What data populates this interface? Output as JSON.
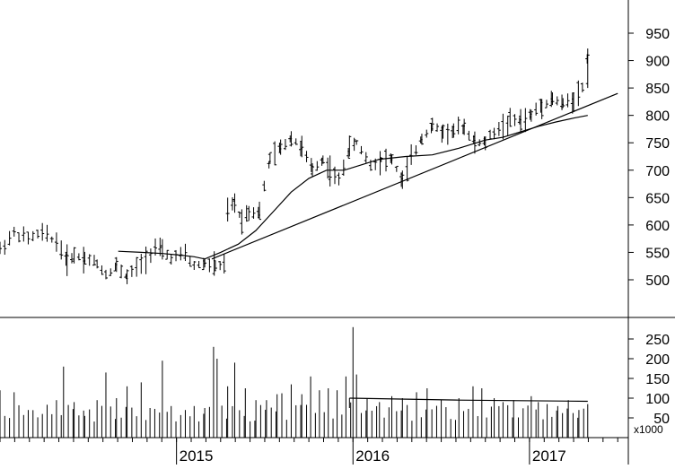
{
  "chart_data": {
    "type": "bar",
    "subtype": "ohlc-weekly-with-volume",
    "background": "#ffffff",
    "line_color": "#000000",
    "grid": false,
    "legend": "none",
    "price_panel": {
      "ylim": [
        450,
        970
      ],
      "yticks": [
        500,
        550,
        600,
        650,
        700,
        750,
        800,
        850,
        900,
        950
      ],
      "ytick_labels": [
        "500",
        "550",
        "600",
        "650",
        "700",
        "750",
        "800",
        "850",
        "900",
        "950"
      ],
      "weekly_close": [
        [
          2014.0,
          555
        ],
        [
          2014.08,
          585
        ],
        [
          2014.16,
          575
        ],
        [
          2014.24,
          585
        ],
        [
          2014.32,
          570
        ],
        [
          2014.38,
          535
        ],
        [
          2014.42,
          545
        ],
        [
          2014.48,
          540
        ],
        [
          2014.55,
          530
        ],
        [
          2014.6,
          510
        ],
        [
          2014.66,
          525
        ],
        [
          2014.72,
          505
        ],
        [
          2014.8,
          530
        ],
        [
          2014.88,
          560
        ],
        [
          2014.92,
          550
        ],
        [
          2014.97,
          540
        ],
        [
          2015.05,
          545
        ],
        [
          2015.1,
          525
        ],
        [
          2015.16,
          530
        ],
        [
          2015.22,
          525
        ],
        [
          2015.27,
          525
        ],
        [
          2015.29,
          625
        ],
        [
          2015.33,
          640
        ],
        [
          2015.37,
          610
        ],
        [
          2015.41,
          625
        ],
        [
          2015.47,
          625
        ],
        [
          2015.53,
          720
        ],
        [
          2015.59,
          740
        ],
        [
          2015.65,
          760
        ],
        [
          2015.71,
          740
        ],
        [
          2015.77,
          700
        ],
        [
          2015.83,
          720
        ],
        [
          2015.87,
          700
        ],
        [
          2015.92,
          680
        ],
        [
          2015.98,
          740
        ],
        [
          2016.02,
          750
        ],
        [
          2016.1,
          710
        ],
        [
          2016.16,
          720
        ],
        [
          2016.22,
          720
        ],
        [
          2016.28,
          680
        ],
        [
          2016.33,
          720
        ],
        [
          2016.39,
          760
        ],
        [
          2016.45,
          780
        ],
        [
          2016.51,
          770
        ],
        [
          2016.57,
          770
        ],
        [
          2016.63,
          780
        ],
        [
          2016.69,
          750
        ],
        [
          2016.75,
          750
        ],
        [
          2016.8,
          770
        ],
        [
          2016.85,
          780
        ],
        [
          2016.89,
          790
        ],
        [
          2016.95,
          790
        ],
        [
          2017.01,
          800
        ],
        [
          2017.07,
          820
        ],
        [
          2017.13,
          830
        ],
        [
          2017.19,
          820
        ],
        [
          2017.25,
          830
        ],
        [
          2017.3,
          850
        ],
        [
          2017.33,
          910
        ]
      ],
      "moving_average": [
        [
          2014.67,
          552
        ],
        [
          2014.8,
          550
        ],
        [
          2014.92,
          548
        ],
        [
          2015.02,
          545
        ],
        [
          2015.1,
          542
        ],
        [
          2015.16,
          538
        ],
        [
          2015.25,
          550
        ],
        [
          2015.35,
          565
        ],
        [
          2015.45,
          590
        ],
        [
          2015.55,
          625
        ],
        [
          2015.65,
          660
        ],
        [
          2015.75,
          685
        ],
        [
          2015.85,
          700
        ],
        [
          2015.95,
          700
        ],
        [
          2016.05,
          710
        ],
        [
          2016.15,
          720
        ],
        [
          2016.3,
          725
        ],
        [
          2016.45,
          728
        ],
        [
          2016.6,
          740
        ],
        [
          2016.75,
          755
        ],
        [
          2016.85,
          760
        ],
        [
          2016.95,
          770
        ],
        [
          2017.05,
          780
        ],
        [
          2017.15,
          788
        ],
        [
          2017.25,
          795
        ],
        [
          2017.33,
          800
        ]
      ],
      "trendline": [
        [
          2015.2,
          538
        ],
        [
          2017.5,
          840
        ]
      ]
    },
    "volume_panel": {
      "unit_label": "x1000",
      "ylim": [
        0,
        290
      ],
      "yticks": [
        50,
        100,
        150,
        200,
        250
      ],
      "ytick_labels": [
        "50",
        "100",
        "150",
        "200",
        "250"
      ],
      "weekly_volume": [
        [
          2014.0,
          120
        ],
        [
          2014.08,
          115
        ],
        [
          2014.16,
          70
        ],
        [
          2014.24,
          60
        ],
        [
          2014.32,
          95
        ],
        [
          2014.36,
          180
        ],
        [
          2014.42,
          90
        ],
        [
          2014.48,
          55
        ],
        [
          2014.55,
          95
        ],
        [
          2014.6,
          165
        ],
        [
          2014.66,
          100
        ],
        [
          2014.72,
          130
        ],
        [
          2014.8,
          140
        ],
        [
          2014.85,
          75
        ],
        [
          2014.92,
          195
        ],
        [
          2014.97,
          80
        ],
        [
          2015.05,
          70
        ],
        [
          2015.1,
          80
        ],
        [
          2015.16,
          75
        ],
        [
          2015.21,
          230
        ],
        [
          2015.23,
          200
        ],
        [
          2015.29,
          130
        ],
        [
          2015.33,
          190
        ],
        [
          2015.39,
          125
        ],
        [
          2015.45,
          95
        ],
        [
          2015.51,
          95
        ],
        [
          2015.57,
          110
        ],
        [
          2015.65,
          135
        ],
        [
          2015.71,
          110
        ],
        [
          2015.76,
          155
        ],
        [
          2015.81,
          120
        ],
        [
          2015.86,
          125
        ],
        [
          2015.91,
          120
        ],
        [
          2015.96,
          155
        ],
        [
          2016.0,
          280
        ],
        [
          2016.02,
          160
        ],
        [
          2016.08,
          100
        ],
        [
          2016.15,
          90
        ],
        [
          2016.22,
          105
        ],
        [
          2016.28,
          100
        ],
        [
          2016.36,
          115
        ],
        [
          2016.42,
          125
        ],
        [
          2016.5,
          95
        ],
        [
          2016.6,
          100
        ],
        [
          2016.68,
          130
        ],
        [
          2016.73,
          125
        ],
        [
          2016.8,
          100
        ],
        [
          2016.85,
          90
        ],
        [
          2016.91,
          95
        ],
        [
          2017.01,
          105
        ],
        [
          2017.05,
          90
        ],
        [
          2017.1,
          85
        ],
        [
          2017.16,
          80
        ],
        [
          2017.22,
          95
        ],
        [
          2017.28,
          70
        ],
        [
          2017.33,
          85
        ]
      ],
      "average_line": [
        [
          2015.98,
          100
        ],
        [
          2016.6,
          95
        ],
        [
          2017.33,
          92
        ]
      ]
    },
    "x_axis": {
      "xlim": [
        2014.0,
        2017.56
      ],
      "year_labels": [
        {
          "x": 2015.0,
          "label": "2015"
        },
        {
          "x": 2016.0,
          "label": "2016"
        },
        {
          "x": 2017.0,
          "label": "2017"
        }
      ]
    }
  }
}
